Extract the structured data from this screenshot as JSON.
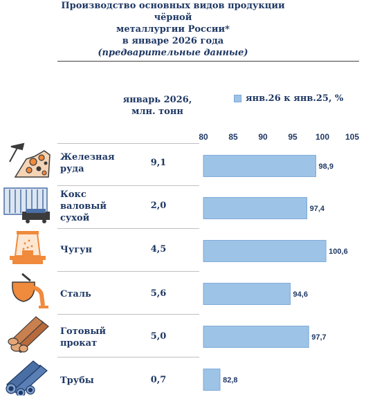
{
  "title": {
    "line1": "Производство основных видов продукции чёрной",
    "line2": "металлургии России*",
    "line3": "в январе 2026 года",
    "line4": "(предварительные данные)"
  },
  "column_header": {
    "line1": "январь 2026,",
    "line2": "млн. тонн"
  },
  "products": [
    {
      "name_lines": [
        "Железная",
        "руда"
      ],
      "volume": "9,1",
      "icon": "ore-mining-icon"
    },
    {
      "name_lines": [
        "Кокс",
        "валовый",
        "сухой"
      ],
      "volume": "2,0",
      "icon": "coke-oven-icon"
    },
    {
      "name_lines": [
        "Чугун"
      ],
      "volume": "4,5",
      "icon": "blast-furnace-icon"
    },
    {
      "name_lines": [
        "Сталь"
      ],
      "volume": "5,6",
      "icon": "steel-ladle-icon"
    },
    {
      "name_lines": [
        "Готовый",
        "прокат"
      ],
      "volume": "5,0",
      "icon": "rolled-steel-icon"
    },
    {
      "name_lines": [
        "Трубы"
      ],
      "volume": "0,7",
      "icon": "pipes-icon"
    }
  ],
  "colors": {
    "bar": "#9dc3e6",
    "bar_edge": "#6f9fd4",
    "text": "#1f3864",
    "icon_orange": "#f08a3c",
    "icon_dark": "#3b3b3b",
    "icon_blue": "#4a6fa5"
  },
  "chart_data": {
    "type": "bar",
    "orientation": "horizontal",
    "categories": [
      "Железная руда",
      "Кокс валовый сухой",
      "Чугун",
      "Сталь",
      "Готовый прокат",
      "Трубы"
    ],
    "series": [
      {
        "name": "янв.26 к янв.25, %",
        "values": [
          98.9,
          97.4,
          100.6,
          94.6,
          97.7,
          82.8
        ]
      }
    ],
    "value_labels": [
      "98,9",
      "97,4",
      "100,6",
      "94,6",
      "97,7",
      "82,8"
    ],
    "x_ticks": [
      80,
      85,
      90,
      95,
      100,
      105
    ],
    "xlim": [
      80,
      105
    ],
    "legend_position": "top"
  }
}
